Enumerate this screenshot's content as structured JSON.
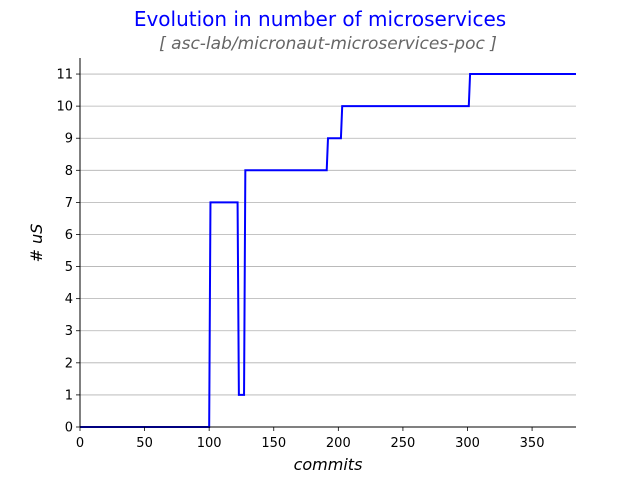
{
  "chart_data": {
    "type": "line",
    "title": "Evolution in number of microservices",
    "subtitle": "[ asc-lab/micronaut-microservices-poc ]",
    "xlabel": "commits",
    "ylabel": "# uS",
    "xlim": [
      0,
      384
    ],
    "ylim": [
      0,
      11.5
    ],
    "xticks": [
      0,
      50,
      100,
      150,
      200,
      250,
      300,
      350
    ],
    "yticks": [
      0,
      1,
      2,
      3,
      4,
      5,
      6,
      7,
      8,
      9,
      10,
      11
    ],
    "grid": "horizontal",
    "series": [
      {
        "color": "#0000ff",
        "x": [
          0,
          100,
          101,
          122,
          123,
          127,
          128,
          191,
          192,
          202,
          203,
          301,
          302,
          384
        ],
        "y": [
          0,
          0,
          7,
          7,
          1,
          1,
          8,
          8,
          9,
          9,
          10,
          10,
          11,
          11
        ]
      }
    ]
  }
}
